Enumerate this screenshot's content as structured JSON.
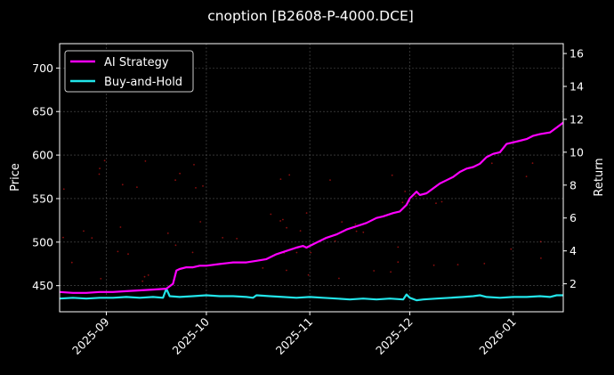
{
  "chart_data": {
    "type": "line",
    "title": "cnoption [B2608-P-4000.DCE]",
    "xlabel": "",
    "ylabel_left": "Price",
    "ylabel_right": "Return",
    "x_range": [
      "2025-08-18",
      "2026-01-16"
    ],
    "ylim_left": [
      420,
      728
    ],
    "ylim_right": [
      0.3,
      16.6
    ],
    "x_ticks": [
      "2025-09",
      "2025-10",
      "2025-11",
      "2025-12",
      "2026-01"
    ],
    "y_ticks_left": [
      450,
      500,
      550,
      600,
      650,
      700
    ],
    "y_ticks_right": [
      2,
      4,
      6,
      8,
      10,
      12,
      14,
      16
    ],
    "grid": true,
    "legend_position": "top-left",
    "colors": {
      "background": "#000000",
      "ai_strategy": "#ff00ff",
      "buy_and_hold": "#22e5ea",
      "price_points": "#ff1a1a",
      "grid": "#555555",
      "axes": "#ffffff"
    },
    "series": [
      {
        "name": "AI Strategy",
        "axis": "right",
        "x": [
          "2025-08-18",
          "2025-08-22",
          "2025-08-26",
          "2025-08-30",
          "2025-09-03",
          "2025-09-07",
          "2025-09-11",
          "2025-09-15",
          "2025-09-19",
          "2025-09-21",
          "2025-09-22",
          "2025-09-23",
          "2025-09-25",
          "2025-09-27",
          "2025-09-29",
          "2025-10-01",
          "2025-10-05",
          "2025-10-09",
          "2025-10-13",
          "2025-10-16",
          "2025-10-19",
          "2025-10-22",
          "2025-10-25",
          "2025-10-28",
          "2025-10-30",
          "2025-10-31",
          "2025-11-01",
          "2025-11-03",
          "2025-11-06",
          "2025-11-09",
          "2025-11-12",
          "2025-11-15",
          "2025-11-18",
          "2025-11-21",
          "2025-11-23",
          "2025-11-26",
          "2025-11-28",
          "2025-11-30",
          "2025-12-01",
          "2025-12-03",
          "2025-12-04",
          "2025-12-06",
          "2025-12-08",
          "2025-12-10",
          "2025-12-12",
          "2025-12-14",
          "2025-12-16",
          "2025-12-18",
          "2025-12-20",
          "2025-12-22",
          "2025-12-24",
          "2025-12-26",
          "2025-12-28",
          "2025-12-30",
          "2026-01-01",
          "2026-01-03",
          "2026-01-05",
          "2026-01-07",
          "2026-01-09",
          "2026-01-12",
          "2026-01-14",
          "2026-01-16"
        ],
        "values": [
          1.5,
          1.45,
          1.45,
          1.5,
          1.5,
          1.55,
          1.6,
          1.65,
          1.7,
          2.0,
          2.8,
          2.9,
          3.0,
          3.0,
          3.1,
          3.1,
          3.2,
          3.3,
          3.3,
          3.4,
          3.5,
          3.8,
          4.0,
          4.2,
          4.3,
          4.2,
          4.3,
          4.5,
          4.8,
          5.0,
          5.3,
          5.5,
          5.7,
          6.0,
          6.1,
          6.3,
          6.4,
          6.8,
          7.2,
          7.6,
          7.4,
          7.5,
          7.8,
          8.1,
          8.3,
          8.5,
          8.8,
          9.0,
          9.1,
          9.3,
          9.7,
          9.9,
          10.0,
          10.5,
          10.6,
          10.7,
          10.8,
          11.0,
          11.1,
          11.2,
          11.5,
          11.8
        ]
      },
      {
        "name": "Buy-and-Hold",
        "axis": "right",
        "x": [
          "2025-08-18",
          "2025-08-22",
          "2025-08-26",
          "2025-08-30",
          "2025-09-03",
          "2025-09-07",
          "2025-09-11",
          "2025-09-15",
          "2025-09-18",
          "2025-09-19",
          "2025-09-20",
          "2025-09-23",
          "2025-09-27",
          "2025-10-01",
          "2025-10-05",
          "2025-10-09",
          "2025-10-13",
          "2025-10-15",
          "2025-10-16",
          "2025-10-20",
          "2025-10-24",
          "2025-10-28",
          "2025-11-01",
          "2025-11-05",
          "2025-11-09",
          "2025-11-13",
          "2025-11-17",
          "2025-11-21",
          "2025-11-25",
          "2025-11-29",
          "2025-11-30",
          "2025-12-01",
          "2025-12-03",
          "2025-12-05",
          "2025-12-09",
          "2025-12-13",
          "2025-12-17",
          "2025-12-20",
          "2025-12-22",
          "2025-12-24",
          "2025-12-28",
          "2026-01-01",
          "2026-01-05",
          "2026-01-09",
          "2026-01-12",
          "2026-01-14",
          "2026-01-16"
        ],
        "values": [
          1.1,
          1.15,
          1.1,
          1.15,
          1.15,
          1.2,
          1.15,
          1.2,
          1.15,
          1.7,
          1.25,
          1.2,
          1.25,
          1.3,
          1.25,
          1.25,
          1.2,
          1.15,
          1.3,
          1.25,
          1.2,
          1.15,
          1.2,
          1.15,
          1.1,
          1.05,
          1.1,
          1.05,
          1.1,
          1.05,
          1.35,
          1.15,
          1.0,
          1.05,
          1.1,
          1.15,
          1.2,
          1.25,
          1.3,
          1.2,
          1.15,
          1.2,
          1.2,
          1.25,
          1.2,
          1.3,
          1.3
        ]
      }
    ]
  }
}
